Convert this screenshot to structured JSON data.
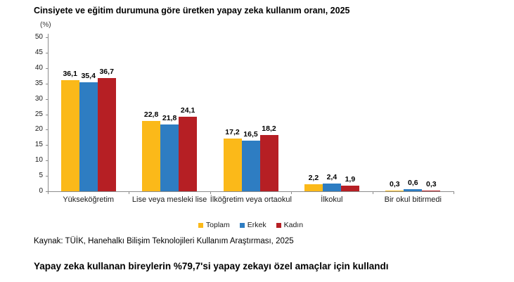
{
  "title": "Cinsiyete ve eğitim durumuna göre üretken yapay zeka kullanım oranı, 2025",
  "unit_label": "(%)",
  "source": "Kaynak: TÜİK, Hanehalkı Bilişim Teknolojileri Kullanım Araştırması, 2025",
  "headline": "Yapay zeka kullanan bireylerin %79,7'si yapay zekayı özel amaçlar için kullandı",
  "colors": {
    "toplam": "#FBB919",
    "erkek": "#2E7DC2",
    "kadin": "#B61F24",
    "axis": "#8C8C8C",
    "text": "#000000"
  },
  "chart_data": {
    "type": "bar",
    "title": "Cinsiyete ve eğitim durumuna göre üretken yapay zeka kullanım oranı, 2025",
    "ylabel": "(%)",
    "categories": [
      "Yükseköğretim",
      "Lise veya mesleki lise",
      "İlköğretim veya ortaokul",
      "İlkokul",
      "Bir okul bitirmedi"
    ],
    "series": [
      {
        "name": "Toplam",
        "color": "#FBB919",
        "values": [
          36.1,
          22.8,
          17.2,
          2.2,
          0.3
        ]
      },
      {
        "name": "Erkek",
        "color": "#2E7DC2",
        "values": [
          35.4,
          21.8,
          16.5,
          2.4,
          0.6
        ]
      },
      {
        "name": "Kadın",
        "color": "#B61F24",
        "values": [
          36.7,
          24.1,
          18.2,
          1.9,
          0.3
        ]
      }
    ],
    "ylim": [
      0,
      50
    ],
    "ytick_step": 5,
    "decimal_separator": ",",
    "grid": false,
    "legend_position": "bottom"
  }
}
